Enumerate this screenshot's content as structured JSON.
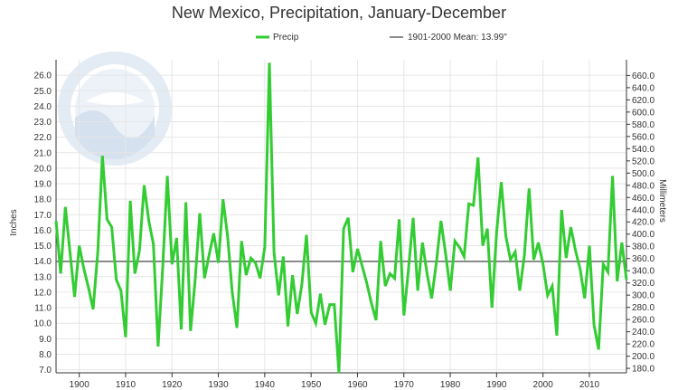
{
  "chart_data": {
    "type": "line",
    "title": "New Mexico, Precipitation, January-December",
    "ylabel_left": "Inches",
    "ylabel_right": "Millimeters",
    "legend": {
      "series_label": "Precip",
      "mean_label": "1901-2000 Mean: 13.99\""
    },
    "mean": 13.99,
    "ylim_in": [
      6.8,
      27.0
    ],
    "xlim": [
      1895,
      2018
    ],
    "y_ticks_in": [
      7.0,
      8.0,
      9.0,
      10.0,
      11.0,
      12.0,
      13.0,
      14.0,
      15.0,
      16.0,
      17.0,
      18.0,
      19.0,
      20.0,
      21.0,
      22.0,
      23.0,
      24.0,
      25.0,
      26.0
    ],
    "y_tick_labels_in": [
      "7.0",
      "8.0",
      "9.0",
      "10.0",
      "11.0",
      "12.0",
      "13.0",
      "14.0",
      "15.0",
      "16.0",
      "17.0",
      "18.0",
      "19.0",
      "20.0",
      "21.0",
      "22.0",
      "23.0",
      "24.0",
      "25.0",
      "26.0"
    ],
    "y_ticks_mm": [
      180,
      200,
      220,
      240,
      260,
      280,
      300,
      320,
      340,
      360,
      380,
      400,
      420,
      440,
      460,
      480,
      500,
      520,
      540,
      560,
      580,
      600,
      620,
      640,
      660
    ],
    "y_tick_labels_mm": [
      "180.0",
      "200.0",
      "220.0",
      "240.0",
      "260.0",
      "280.0",
      "300.0",
      "320.0",
      "340.0",
      "360.0",
      "380.0",
      "400.0",
      "420.0",
      "440.0",
      "460.0",
      "480.0",
      "500.0",
      "520.0",
      "540.0",
      "560.0",
      "580.0",
      "600.0",
      "620.0",
      "640.0",
      "660.0"
    ],
    "x_ticks": [
      1900,
      1910,
      1920,
      1930,
      1940,
      1950,
      1960,
      1970,
      1980,
      1990,
      2000,
      2010
    ],
    "x_tick_labels": [
      "1900",
      "1910",
      "1920",
      "1930",
      "1940",
      "1950",
      "1960",
      "1970",
      "1980",
      "1990",
      "2000",
      "2010"
    ],
    "grid": true,
    "legend_position": "top",
    "colors": {
      "series": "#33cc33",
      "mean": "#666666",
      "grid": "#e6e6e6",
      "axis": "#333333"
    },
    "series": [
      {
        "name": "Precip",
        "x": [
          1895,
          1896,
          1897,
          1898,
          1899,
          1900,
          1901,
          1902,
          1903,
          1904,
          1905,
          1906,
          1907,
          1908,
          1909,
          1910,
          1911,
          1912,
          1913,
          1914,
          1915,
          1916,
          1917,
          1918,
          1919,
          1920,
          1921,
          1922,
          1923,
          1924,
          1925,
          1926,
          1927,
          1928,
          1929,
          1930,
          1931,
          1932,
          1933,
          1934,
          1935,
          1936,
          1937,
          1938,
          1939,
          1940,
          1941,
          1942,
          1943,
          1944,
          1945,
          1946,
          1947,
          1948,
          1949,
          1950,
          1951,
          1952,
          1953,
          1954,
          1955,
          1956,
          1957,
          1958,
          1959,
          1960,
          1961,
          1962,
          1963,
          1964,
          1965,
          1966,
          1967,
          1968,
          1969,
          1970,
          1971,
          1972,
          1973,
          1974,
          1975,
          1976,
          1977,
          1978,
          1979,
          1980,
          1981,
          1982,
          1983,
          1984,
          1985,
          1986,
          1987,
          1988,
          1989,
          1990,
          1991,
          1992,
          1993,
          1994,
          1995,
          1996,
          1997,
          1998,
          1999,
          2000,
          2001,
          2002,
          2003,
          2004,
          2005,
          2006,
          2007,
          2008,
          2009,
          2010,
          2011,
          2012,
          2013,
          2014,
          2015,
          2016,
          2017,
          2018
        ],
        "values": [
          16.6,
          13.2,
          17.5,
          14.6,
          11.7,
          15.0,
          13.5,
          12.3,
          10.9,
          14.6,
          20.8,
          16.7,
          16.2,
          12.8,
          12.1,
          9.1,
          17.9,
          13.2,
          14.7,
          18.9,
          16.6,
          15.1,
          8.5,
          13.6,
          19.5,
          13.8,
          15.5,
          9.6,
          17.8,
          9.5,
          12.8,
          17.1,
          12.9,
          14.4,
          15.8,
          13.9,
          18.0,
          15.6,
          12.0,
          9.7,
          15.3,
          13.1,
          14.2,
          13.9,
          12.9,
          14.9,
          26.8,
          14.6,
          11.8,
          14.3,
          9.8,
          13.1,
          10.6,
          12.5,
          15.7,
          10.7,
          10.0,
          11.9,
          9.9,
          11.2,
          11.2,
          6.8,
          16.1,
          16.8,
          13.3,
          14.8,
          13.7,
          12.6,
          11.3,
          10.2,
          15.3,
          12.4,
          13.2,
          12.9,
          16.7,
          10.5,
          13.5,
          16.8,
          12.1,
          15.2,
          13.2,
          11.6,
          13.9,
          16.6,
          14.5,
          12.1,
          15.3,
          14.9,
          14.3,
          17.7,
          17.6,
          20.7,
          15.0,
          16.1,
          11.0,
          15.9,
          19.1,
          15.6,
          14.1,
          14.6,
          12.1,
          14.4,
          18.7,
          14.1,
          15.2,
          13.8,
          11.8,
          12.4,
          9.2,
          17.3,
          14.2,
          16.2,
          14.7,
          13.5,
          11.6,
          15.0,
          9.9,
          8.3,
          13.8,
          13.3,
          19.5,
          12.7,
          15.2,
          12.8
        ]
      }
    ]
  }
}
